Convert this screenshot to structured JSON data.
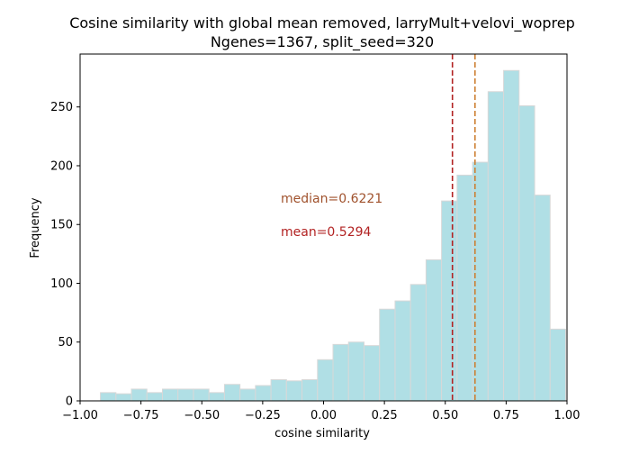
{
  "chart_data": {
    "type": "bar",
    "title": "Cosine similarity with global mean removed, larryMult+velovi_woprep",
    "subtitle": "Ngenes=1367, split_seed=320",
    "xlabel": "cosine similarity",
    "ylabel": "Frequency",
    "xlim": [
      -1.0,
      1.0
    ],
    "ylim": [
      0,
      295
    ],
    "xticks": [
      -1.0,
      -0.75,
      -0.5,
      -0.25,
      0.0,
      0.25,
      0.5,
      0.75,
      1.0
    ],
    "xtick_labels": [
      "−1.00",
      "−0.75",
      "−0.50",
      "−0.25",
      "0.00",
      "0.25",
      "0.50",
      "0.75",
      "1.00"
    ],
    "yticks": [
      0,
      50,
      100,
      150,
      200,
      250
    ],
    "ytick_labels": [
      "0",
      "50",
      "100",
      "150",
      "200",
      "250"
    ],
    "bin_edges": [
      -0.9166,
      -0.8529,
      -0.7892,
      -0.7255,
      -0.6618,
      -0.5981,
      -0.5344,
      -0.4707,
      -0.407,
      -0.3433,
      -0.2796,
      -0.2159,
      -0.1522,
      -0.0885,
      -0.0248,
      0.0389,
      0.1026,
      0.1663,
      0.23,
      0.2937,
      0.3574,
      0.4211,
      0.4848,
      0.5485,
      0.6122,
      0.6759,
      0.7396,
      0.8033,
      0.867,
      0.9307,
      0.9944
    ],
    "values": [
      7,
      6,
      10,
      7,
      10,
      10,
      10,
      7,
      14,
      10,
      13,
      18,
      17,
      18,
      35,
      48,
      50,
      47,
      78,
      85,
      99,
      120,
      170,
      192,
      203,
      263,
      281,
      251,
      175,
      61
    ],
    "bar_color": "#b0dfe5",
    "bar_edge_color": "#d8d8d8",
    "grid": false,
    "annotations": [
      {
        "text": "median=0.6221",
        "color": "#a0522d"
      },
      {
        "text": "mean=0.5294",
        "color": "#b22222"
      }
    ],
    "vlines": [
      {
        "x": 0.5294,
        "color": "#b22222",
        "style": "dashed",
        "label": "mean"
      },
      {
        "x": 0.6221,
        "color": "#cd7f32",
        "style": "dashed",
        "label": "median"
      }
    ]
  }
}
